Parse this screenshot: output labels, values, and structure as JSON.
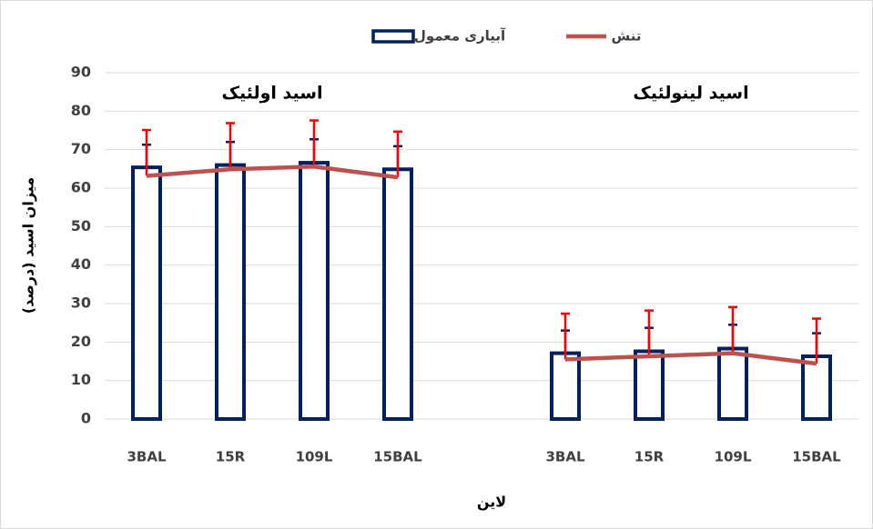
{
  "chart_data": {
    "type": "bar",
    "categories": [
      "3BAL",
      "15R",
      "109L",
      "15BAL",
      null,
      "3BAL",
      "15R",
      "109L",
      "15BAL"
    ],
    "series": [
      {
        "name": "آبیاری معمول",
        "type": "bar",
        "color": "#002060",
        "error_color": "#002060",
        "values": [
          65.4,
          66,
          66.6,
          64.9,
          null,
          17.1,
          17.6,
          18.3,
          16.3
        ],
        "errors": [
          5.9,
          6,
          6.1,
          6,
          null,
          5.9,
          6.1,
          6.2,
          6
        ]
      },
      {
        "name": "تنش",
        "type": "line",
        "color": "#c0504d",
        "error_color": "#ff0000",
        "values": [
          63.2,
          64.9,
          65.6,
          62.8,
          null,
          15.5,
          16.3,
          17.1,
          14.4
        ],
        "errors": [
          11.9,
          12,
          12,
          11.9,
          null,
          11.9,
          11.9,
          12,
          11.7
        ]
      }
    ],
    "annotations": [
      "اسید اولئیک",
      "اسید لینولئیک"
    ],
    "ylabel": "میزان اسید (درصد)",
    "xlabel": "لاین",
    "ylim": [
      0,
      90
    ],
    "yticks": [
      0,
      10,
      20,
      30,
      40,
      50,
      60,
      70,
      80,
      90
    ],
    "grid": true,
    "legend": "top"
  }
}
